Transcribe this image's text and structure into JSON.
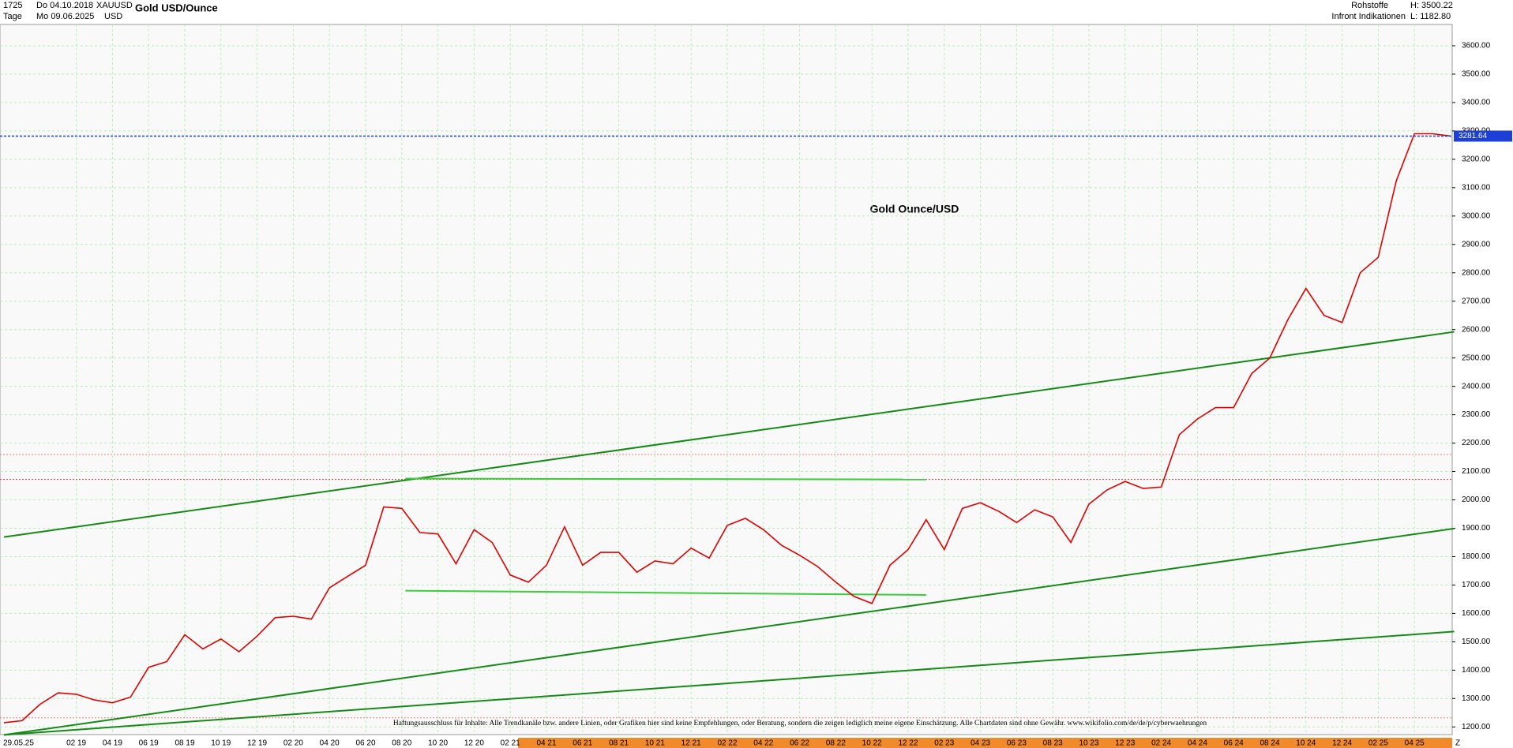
{
  "header": {
    "count": "1725",
    "start": "Do 04.10.2018",
    "symbol": "XAUUSD",
    "title": "Gold USD/Ounce",
    "period": "Tage",
    "end": "Mo 09.06.2025",
    "currency": "USD",
    "category": "Rohstoffe",
    "source": "Infront Indikationen",
    "high": "H: 3500.22",
    "low": "L: 1182.80"
  },
  "chart_data": {
    "type": "line",
    "title": "Gold Ounce/USD",
    "categories": [
      null,
      null,
      null,
      null,
      "02 19",
      null,
      "04 19",
      null,
      "06 19",
      null,
      "08 19",
      null,
      "10 19",
      null,
      "12 19",
      null,
      "02 20",
      null,
      "04 20",
      null,
      "06 20",
      null,
      "08 20",
      null,
      "10 20",
      null,
      "12 20",
      null,
      "02 21",
      null,
      "04 21",
      null,
      "06 21",
      null,
      "08 21",
      null,
      "10 21",
      null,
      "12 21",
      null,
      "02 22",
      null,
      "04 22",
      null,
      "06 22",
      null,
      "08 22",
      null,
      "10 22",
      null,
      "12 22",
      null,
      "02 23",
      null,
      "04 23",
      null,
      "06 23",
      null,
      "08 23",
      null,
      "10 23",
      null,
      "12 23",
      null,
      "02 24",
      null,
      "04 24",
      null,
      "06 24",
      null,
      "08 24",
      null,
      "10 24",
      null,
      "12 24",
      null,
      "02 25",
      null,
      "04 25",
      null,
      null
    ],
    "series": [
      {
        "name": "XAUUSD",
        "color": "#e00000",
        "values": [
          1215,
          1222,
          1280,
          1320,
          1315,
          1295,
          1285,
          1305,
          1410,
          1430,
          1525,
          1475,
          1510,
          1465,
          1520,
          1585,
          1590,
          1580,
          1690,
          1730,
          1770,
          1975,
          1970,
          1885,
          1880,
          1775,
          1895,
          1850,
          1735,
          1710,
          1770,
          1905,
          1770,
          1815,
          1815,
          1745,
          1785,
          1775,
          1830,
          1795,
          1910,
          1935,
          1895,
          1840,
          1805,
          1765,
          1710,
          1660,
          1635,
          1770,
          1825,
          1930,
          1825,
          1970,
          1990,
          1960,
          1920,
          1965,
          1940,
          1850,
          1985,
          2035,
          2065,
          2040,
          2045,
          2230,
          2285,
          2325,
          2325,
          2445,
          2500,
          2635,
          2745,
          2650,
          2625,
          2800,
          2855,
          3125,
          3290,
          3290,
          3282
        ]
      }
    ],
    "ylim": [
      1173,
      3675
    ],
    "yticks": [
      {
        "value": 1200,
        "label": "1200.00"
      },
      {
        "value": 1300,
        "label": "1300.00"
      },
      {
        "value": 1400,
        "label": "1400.00"
      },
      {
        "value": 1500,
        "label": "1500.00"
      },
      {
        "value": 1600,
        "label": "1600.00"
      },
      {
        "value": 1700,
        "label": "1700.00"
      },
      {
        "value": 1800,
        "label": "1800.00"
      },
      {
        "value": 1900,
        "label": "1900.00"
      },
      {
        "value": 2000,
        "label": "2000.00"
      },
      {
        "value": 2100,
        "label": "2100.00"
      },
      {
        "value": 2200,
        "label": "2200.00"
      },
      {
        "value": 2300,
        "label": "2300.00"
      },
      {
        "value": 2400,
        "label": "2400.00"
      },
      {
        "value": 2500,
        "label": "2500.00"
      },
      {
        "value": 2600,
        "label": "2600.00"
      },
      {
        "value": 2700,
        "label": "2700.00"
      },
      {
        "value": 2800,
        "label": "2800.00"
      },
      {
        "value": 2900,
        "label": "2900.00"
      },
      {
        "value": 3000,
        "label": "3000.00"
      },
      {
        "value": 3100,
        "label": "3100.00"
      },
      {
        "value": 3200,
        "label": "3200.00"
      },
      {
        "value": 3300,
        "label": "3300.00"
      },
      {
        "value": 3400,
        "label": "3400.00"
      },
      {
        "value": 3500,
        "label": "3500.00"
      },
      {
        "value": 3600,
        "label": "3600.00"
      }
    ],
    "grid": true,
    "last_price": 3281.64,
    "hlines": [
      {
        "value": 2072,
        "color": "#e03030"
      },
      {
        "value": 2160,
        "color": "#f08080"
      },
      {
        "value": 1232,
        "color": "#f08080"
      }
    ],
    "trendlines": [
      {
        "x": [
          0,
          80.2
        ],
        "y": [
          1869,
          2592
        ],
        "color": "#168a16"
      },
      {
        "x": [
          0,
          80.2
        ],
        "y": [
          1172,
          1899
        ],
        "color": "#168a16"
      },
      {
        "x": [
          0,
          80.2
        ],
        "y": [
          1172,
          1536
        ],
        "color": "#168a16"
      },
      {
        "x": [
          22.2,
          51
        ],
        "y": [
          2075,
          2072
        ],
        "color": "#3ccc3c"
      },
      {
        "x": [
          22.2,
          51
        ],
        "y": [
          1680,
          1665
        ],
        "color": "#3ccc3c"
      }
    ],
    "start_label": "29.05.25",
    "end_label": "Z",
    "disclaimer": "Haftungsausschluss für Inhalte: Alle Trendkanäle bzw. andere Linien, oder Grafiken hier sind keine Empfehlungen, oder Beratung, sondern die zeigen lediglich meine eigene Einschätzung. Alle Chartdaten sind ohne Gewähr. www.wikifolio.com/de/de/p/cyberwaehrungen"
  }
}
